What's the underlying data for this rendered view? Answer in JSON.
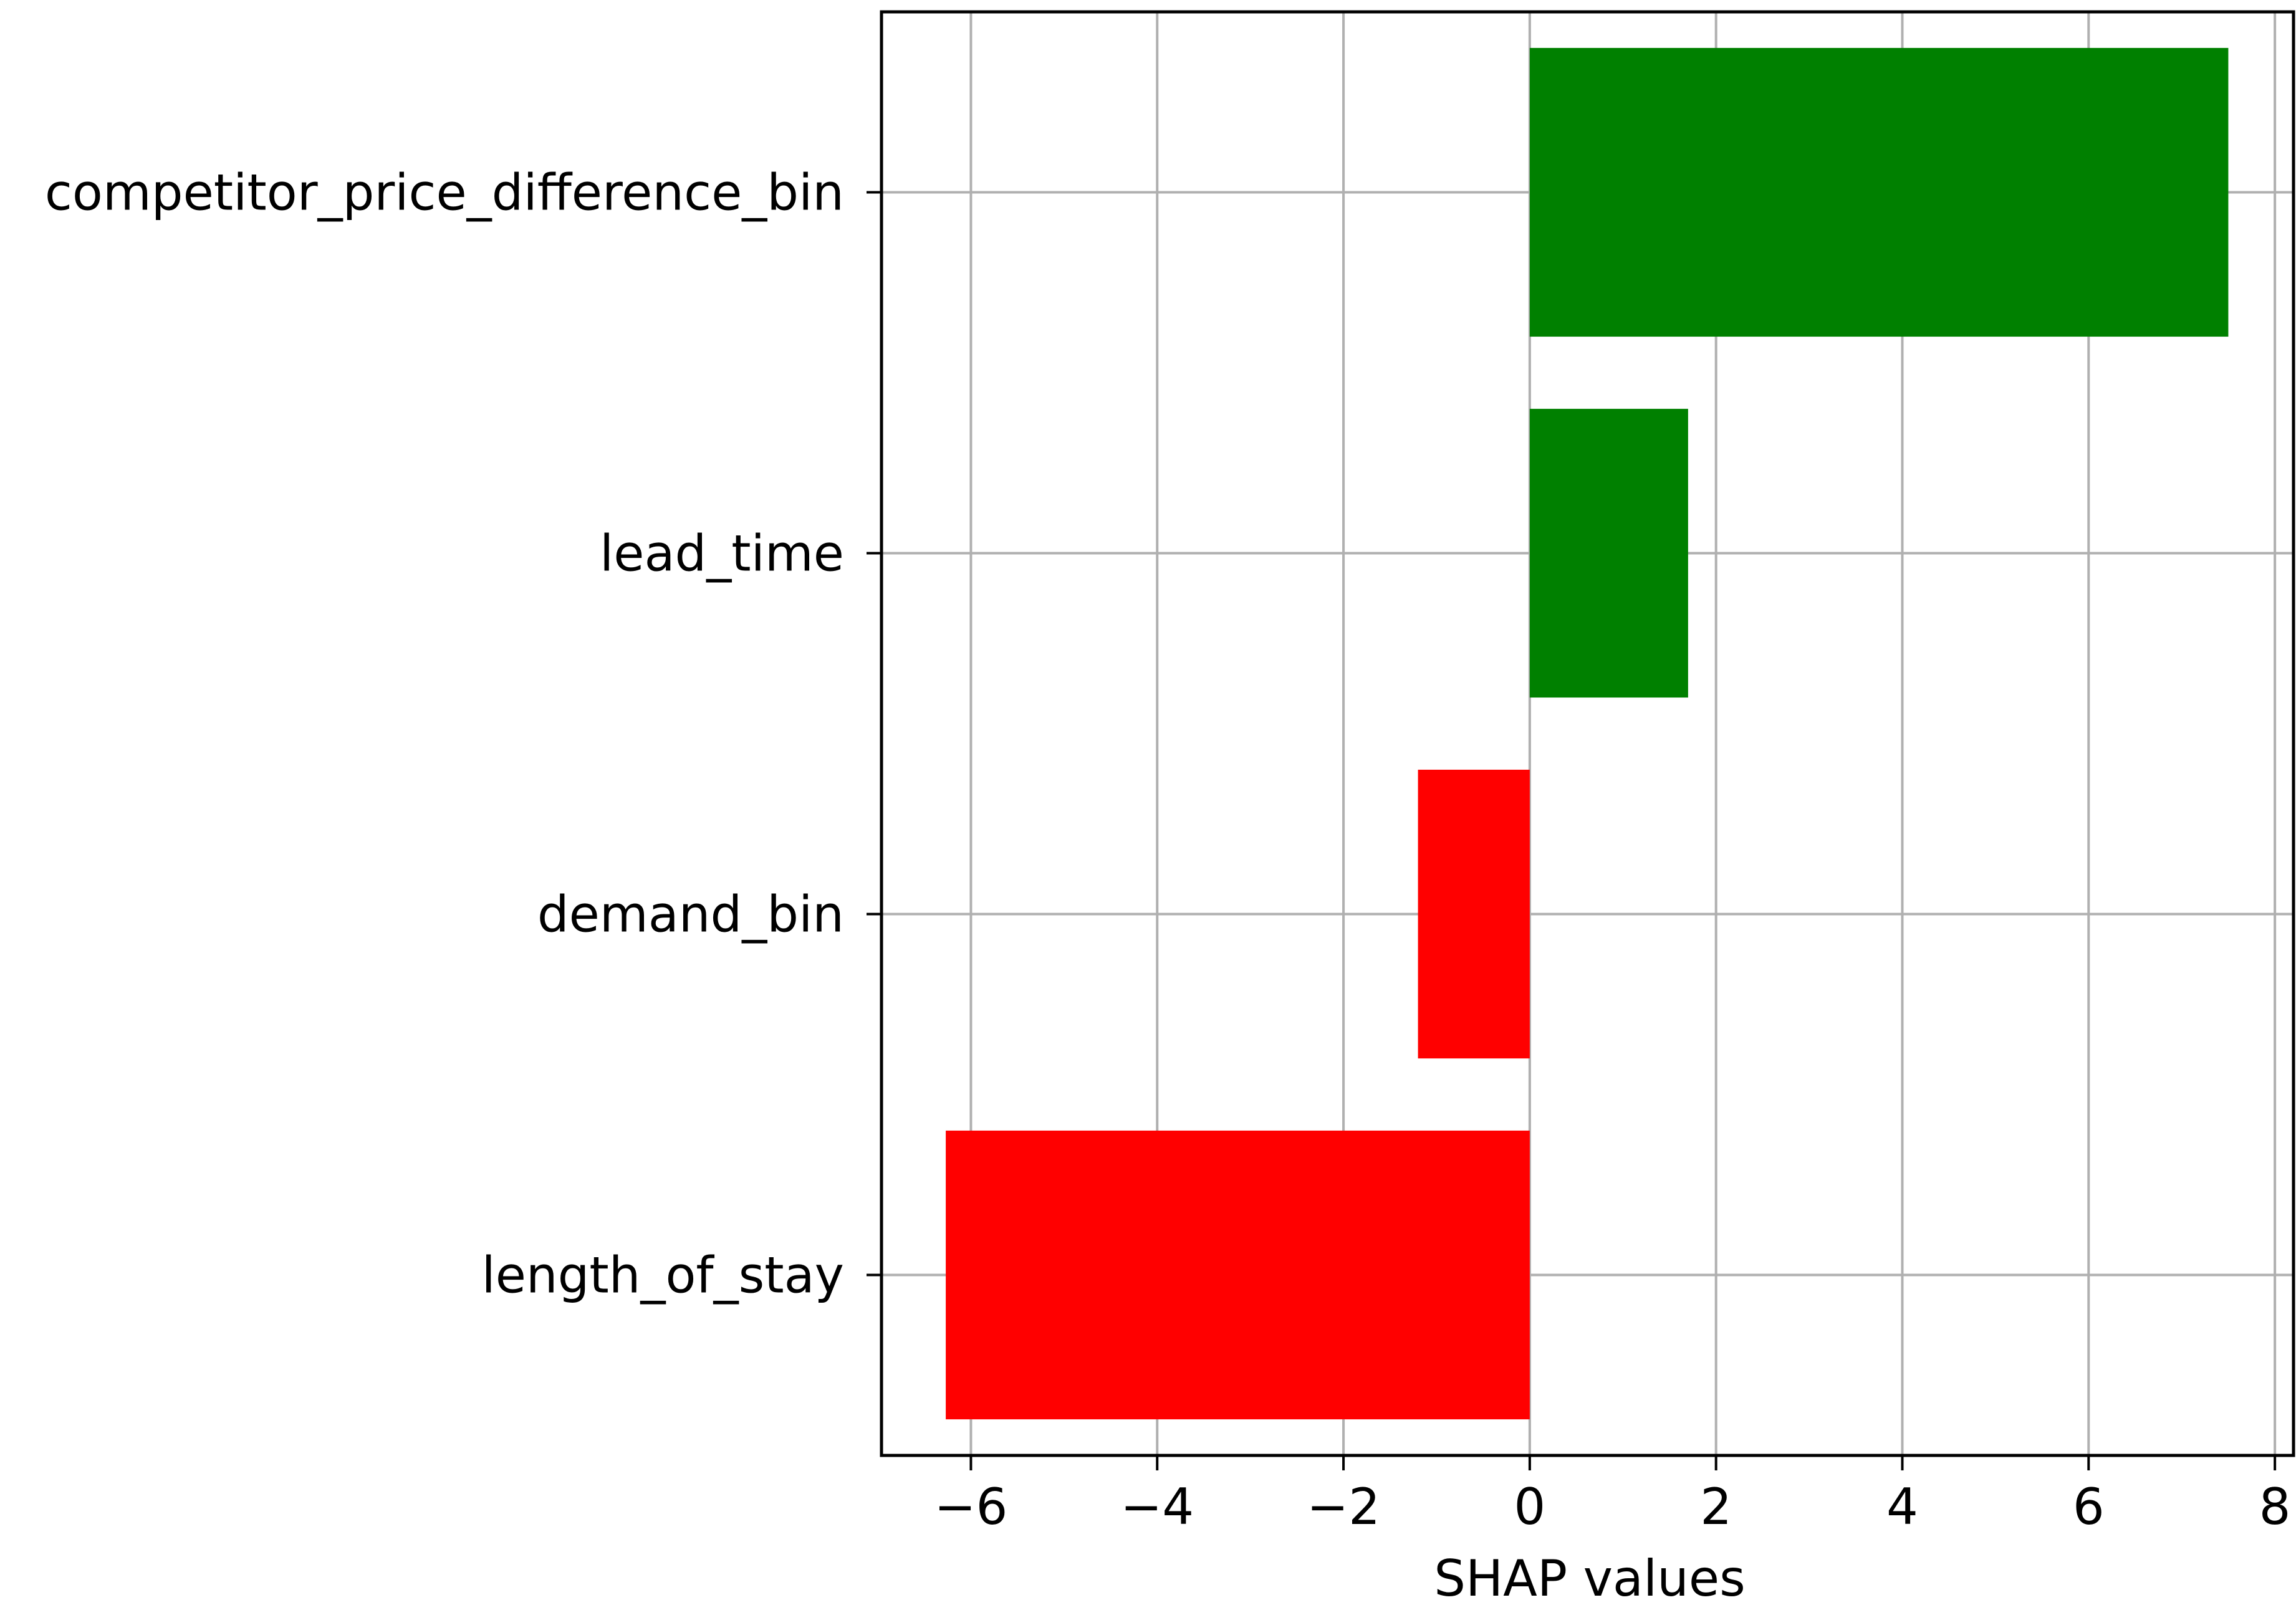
{
  "chart_data": {
    "type": "bar",
    "orientation": "horizontal",
    "categories": [
      "competitor_price_difference_bin",
      "lead_time",
      "demand_bin",
      "length_of_stay"
    ],
    "values": [
      7.5,
      1.7,
      -1.2,
      -6.27
    ],
    "bar_colors": [
      "#008000",
      "#008000",
      "#ff0000",
      "#ff0000"
    ],
    "xlabel": "SHAP values",
    "ylabel": "",
    "title": "",
    "xlim": [
      -6.96,
      8.2
    ],
    "xticks": [
      -6,
      -4,
      -2,
      0,
      2,
      4,
      6,
      8
    ],
    "xtick_labels": [
      "−6",
      "−4",
      "−2",
      "0",
      "2",
      "4",
      "6",
      "8"
    ],
    "grid": true,
    "legend": "none"
  }
}
